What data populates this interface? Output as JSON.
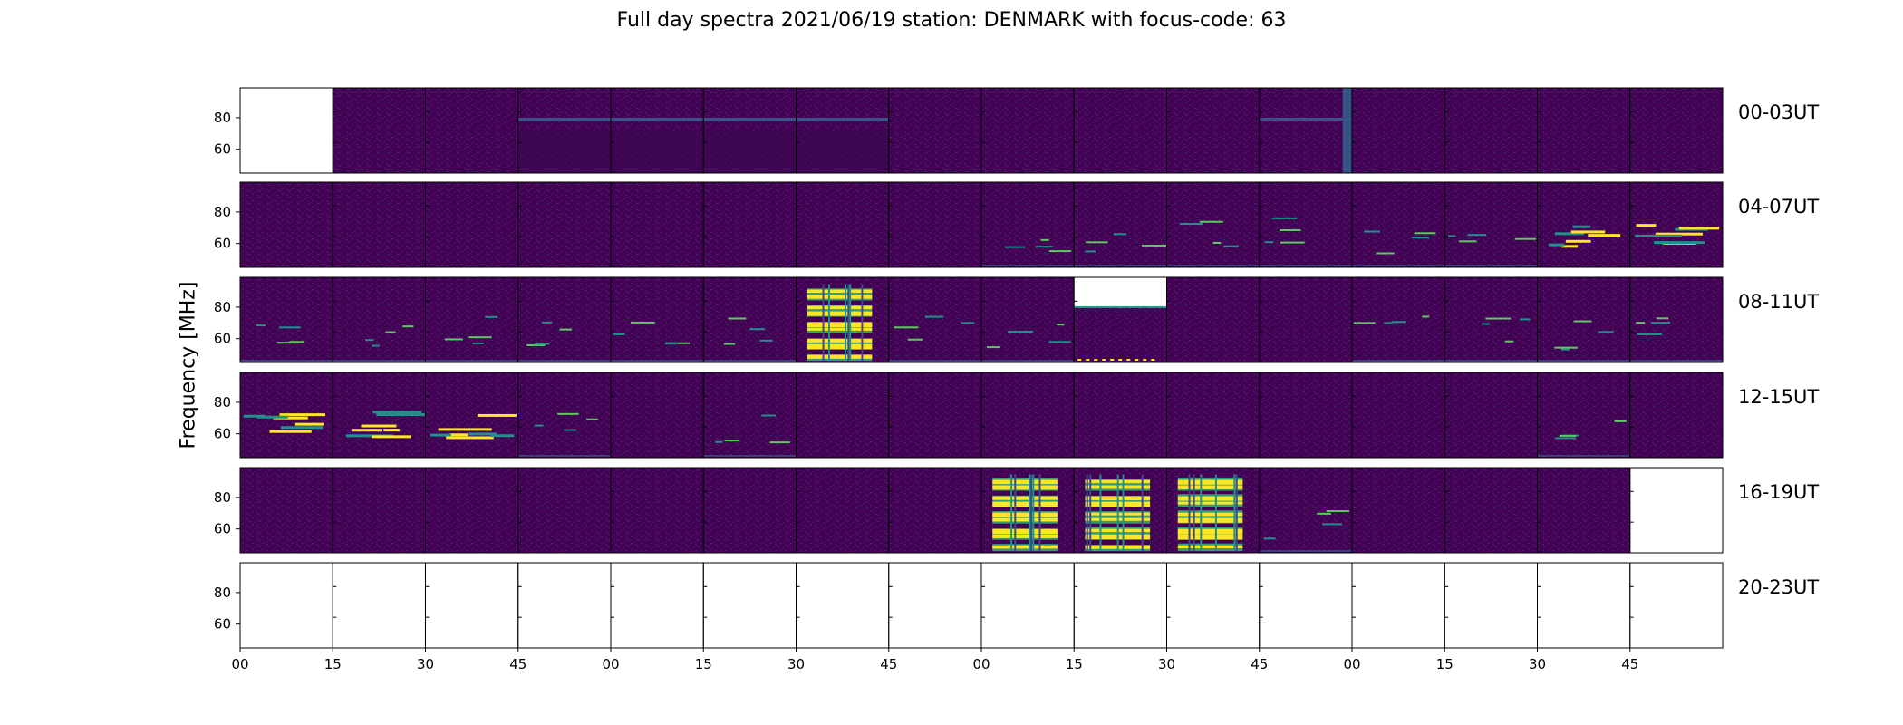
{
  "chart_data": {
    "type": "heatmap",
    "title": "Full day spectra 2021/06/19 station: DENMARK with focus-code: 63",
    "ylabel": "Frequency [MHz]",
    "xlabel": "",
    "y_ticks": [
      "80",
      "60"
    ],
    "x_ticks": [
      "00",
      "15",
      "30",
      "45",
      "00",
      "15",
      "30",
      "45",
      "00",
      "15",
      "30",
      "45",
      "00",
      "15",
      "30",
      "45"
    ],
    "colormap": "viridis",
    "colors": {
      "background": "#440154",
      "mid": "#21918c",
      "high": "#fde725"
    },
    "rows": [
      {
        "label": "00-03UT",
        "panels": [
          "empty",
          "quiet",
          "quiet",
          "band",
          "band",
          "band",
          "band",
          "quiet",
          "quiet",
          "quiet",
          "quiet",
          "streak",
          "quiet",
          "quiet",
          "quiet",
          "quiet"
        ]
      },
      {
        "label": "04-07UT",
        "panels": [
          "quiet",
          "quiet",
          "quiet",
          "quiet",
          "quiet",
          "quiet",
          "quiet",
          "quiet",
          "weak",
          "weak",
          "weak",
          "weak",
          "weak",
          "weak",
          "strong",
          "strong"
        ]
      },
      {
        "label": "08-11UT",
        "panels": [
          "weak",
          "weak",
          "weak",
          "weak",
          "weak",
          "weak",
          "burst",
          "weak",
          "weak",
          "partial",
          "quiet",
          "quiet",
          "weak",
          "weak",
          "weak",
          "weak"
        ]
      },
      {
        "label": "12-15UT",
        "panels": [
          "strong",
          "strong",
          "strong",
          "weak",
          "quiet",
          "weak",
          "quiet",
          "quiet",
          "quiet",
          "quiet",
          "quiet",
          "quiet",
          "quiet",
          "quiet",
          "weak",
          "quiet"
        ]
      },
      {
        "label": "16-19UT",
        "panels": [
          "quiet",
          "quiet",
          "quiet",
          "quiet",
          "quiet",
          "quiet",
          "quiet",
          "quiet",
          "burst",
          "burst",
          "burst",
          "weak",
          "quiet",
          "quiet",
          "quiet",
          "empty"
        ]
      },
      {
        "label": "20-23UT",
        "panels": [
          "empty",
          "empty",
          "empty",
          "empty",
          "empty",
          "empty",
          "empty",
          "empty",
          "empty",
          "empty",
          "empty",
          "empty",
          "empty",
          "empty",
          "empty",
          "empty"
        ]
      }
    ]
  }
}
